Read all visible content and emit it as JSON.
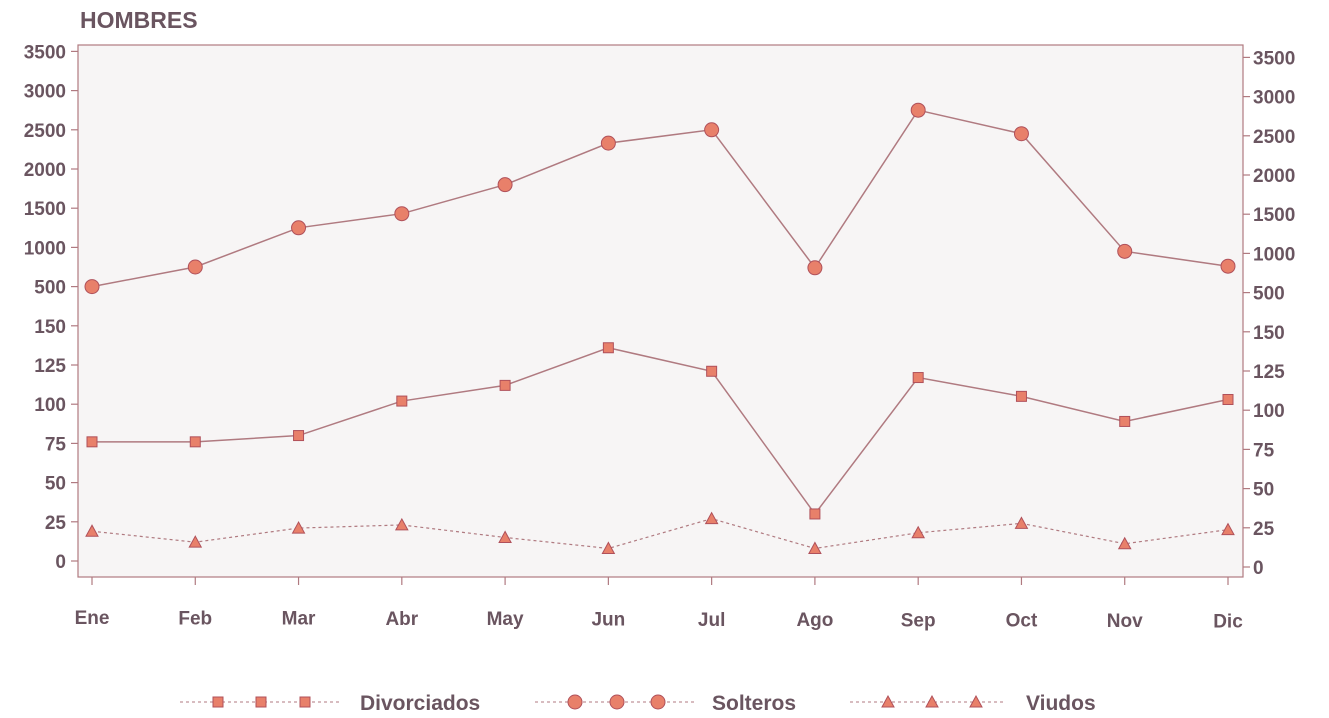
{
  "chart_data": {
    "type": "line",
    "title": "HOMBRES",
    "categories": [
      "Ene",
      "Feb",
      "Mar",
      "Abr",
      "May",
      "Jun",
      "Jul",
      "Ago",
      "Sep",
      "Oct",
      "Nov",
      "Dic"
    ],
    "y_tick_labels": [
      "0",
      "25",
      "50",
      "75",
      "100",
      "125",
      "150",
      "500",
      "1000",
      "1500",
      "2000",
      "2500",
      "3000",
      "3500"
    ],
    "y_axis_note": "broken scale: 0-150 in steps of 25, then 500-3500 in steps of 500",
    "grid": false,
    "legend_position": "bottom",
    "series": [
      {
        "name": "Solteros",
        "marker": "circle",
        "line": "solid",
        "values": [
          500,
          750,
          1250,
          1430,
          1800,
          2330,
          2500,
          740,
          2750,
          2450,
          950,
          760
        ]
      },
      {
        "name": "Divorciados",
        "marker": "square",
        "line": "solid",
        "values": [
          76,
          76,
          80,
          102,
          112,
          136,
          121,
          30,
          117,
          105,
          89,
          103
        ]
      },
      {
        "name": "Viudos",
        "marker": "triangle",
        "line": "dotted",
        "values": [
          19,
          12,
          21,
          23,
          15,
          8,
          27,
          8,
          18,
          24,
          11,
          20
        ]
      }
    ]
  },
  "colors": {
    "line": "#b07a80",
    "marker_fill": "#e8806a",
    "marker_stroke": "#b0505a",
    "text": "#6a5560",
    "frame": "#b07a80",
    "plot_bg": "#f7f5f5"
  },
  "legend": [
    {
      "label": "Divorciados",
      "marker": "square"
    },
    {
      "label": "Solteros",
      "marker": "circle"
    },
    {
      "label": "Viudos",
      "marker": "triangle"
    }
  ]
}
